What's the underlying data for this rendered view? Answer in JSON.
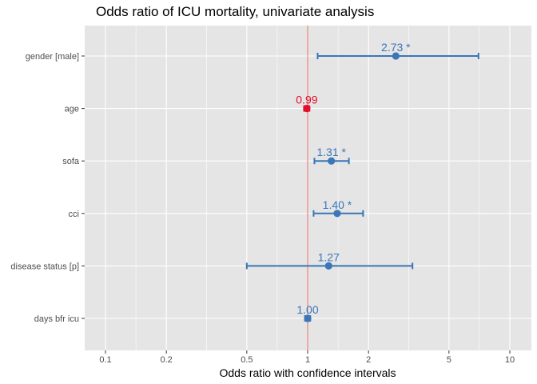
{
  "chart_data": {
    "type": "forest",
    "title": "Odds ratio of ICU mortality, univariate analysis",
    "xlabel": "Odds ratio with confidence intervals",
    "ylabel": "",
    "x_scale": "log",
    "xlim": [
      0.08,
      13
    ],
    "x_ticks": [
      0.1,
      0.2,
      0.5,
      1,
      2,
      5,
      10
    ],
    "x_tick_labels": [
      "0.1",
      "0.2",
      "0.5",
      "1",
      "2",
      "5",
      "10"
    ],
    "reference_line": 1,
    "grid": true,
    "legend": "none",
    "colors": {
      "panel_background": "#e5e5e5",
      "gridline": "#ffffff",
      "reference_line": "#f08080",
      "positive": "#3a76b8",
      "negative": "#e0102a"
    },
    "rows": [
      {
        "label": "gender [male]",
        "estimate": 2.73,
        "ci_low": 1.12,
        "ci_high": 7.0,
        "data_label": "2.73 *",
        "direction": "positive"
      },
      {
        "label": "age",
        "estimate": 0.99,
        "ci_low": 0.96,
        "ci_high": 1.02,
        "data_label": "0.99",
        "direction": "negative"
      },
      {
        "label": "sofa",
        "estimate": 1.31,
        "ci_low": 1.08,
        "ci_high": 1.6,
        "data_label": "1.31 *",
        "direction": "positive"
      },
      {
        "label": "cci",
        "estimate": 1.4,
        "ci_low": 1.07,
        "ci_high": 1.88,
        "data_label": "1.40 *",
        "direction": "positive"
      },
      {
        "label": "disease status [p]",
        "estimate": 1.27,
        "ci_low": 0.5,
        "ci_high": 3.3,
        "data_label": "1.27",
        "direction": "positive"
      },
      {
        "label": "days bfr icu",
        "estimate": 1.0,
        "ci_low": 0.97,
        "ci_high": 1.03,
        "data_label": "1.00",
        "direction": "positive"
      }
    ]
  }
}
